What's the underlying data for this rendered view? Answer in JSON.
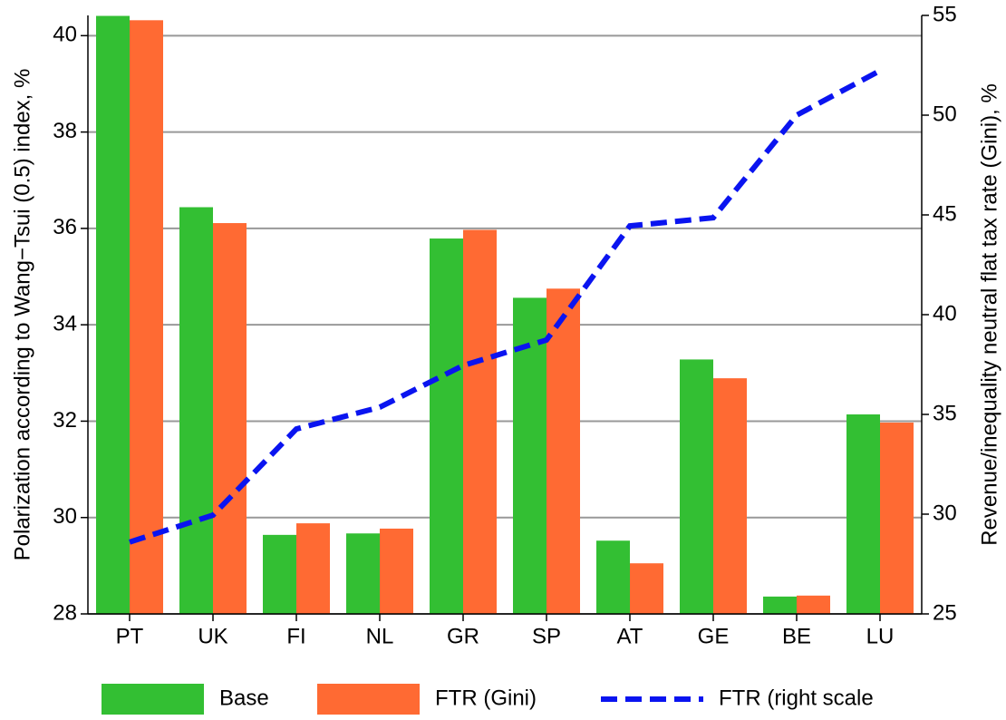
{
  "chart_data": {
    "type": "bar",
    "y_label": "Polarization according to Wang−Tsui (0.5) index, %",
    "y2_label": "Revenue/inequality neutral flat tax rate (Gini), %",
    "categories": [
      "PT",
      "UK",
      "FI",
      "NL",
      "GR",
      "SP",
      "AT",
      "GE",
      "BE",
      "LU"
    ],
    "series": [
      {
        "name": "Base",
        "color": "#33bf33",
        "values": [
          40.41,
          36.44,
          29.64,
          29.67,
          35.79,
          34.56,
          29.52,
          33.28,
          28.36,
          32.14
        ]
      },
      {
        "name": "FTR (Gini)",
        "color": "#ff6a33",
        "values": [
          40.32,
          36.11,
          29.88,
          29.77,
          35.97,
          34.75,
          29.05,
          32.89,
          28.38,
          31.97
        ]
      },
      {
        "name": "FTR (right scale",
        "color": "#0a14f0",
        "type": "line",
        "axis": "y2",
        "values": [
          28.6,
          29.95,
          34.27,
          35.36,
          37.45,
          38.73,
          44.45,
          44.86,
          50.0,
          52.23
        ]
      }
    ],
    "ylim": [
      28,
      40.42
    ],
    "yticks": [
      28,
      30,
      32,
      34,
      36,
      38,
      40
    ],
    "y2lim": [
      25,
      55
    ],
    "y2ticks": [
      25,
      30,
      35,
      40,
      45,
      50,
      55
    ],
    "grid": true,
    "legend": "bottom"
  }
}
